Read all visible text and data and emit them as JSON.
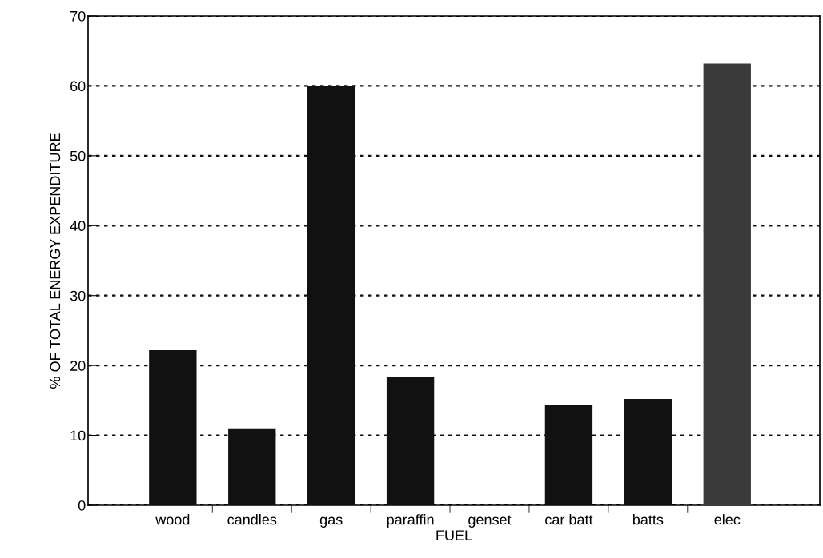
{
  "chart_data": {
    "type": "bar",
    "xlabel": "FUEL",
    "ylabel": "% OF TOTAL ENERGY EXPENDITURE",
    "categories": [
      "wood",
      "candles",
      "gas",
      "paraffin",
      "genset",
      "car batt",
      "batts",
      "elec"
    ],
    "values": [
      22.2,
      10.9,
      60,
      18.3,
      0,
      14.3,
      15.2,
      63.2
    ],
    "colors": [
      "#111111",
      "#111111",
      "#111111",
      "#111111",
      "#111111",
      "#111111",
      "#111111",
      "#3a3a3a"
    ],
    "ylim": [
      0,
      70
    ],
    "yticks": [
      0,
      10,
      20,
      30,
      40,
      50,
      60,
      70
    ],
    "grid": "y"
  }
}
